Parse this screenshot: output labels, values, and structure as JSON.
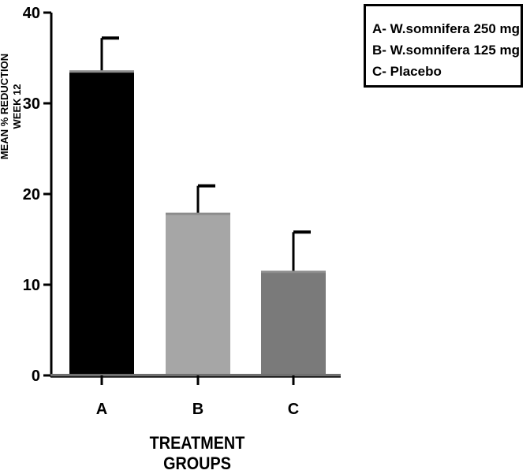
{
  "chart_data": {
    "type": "bar",
    "categories": [
      "A",
      "B",
      "C"
    ],
    "values": [
      33.6,
      17.9,
      11.5
    ],
    "errors": [
      3.6,
      3.0,
      4.3
    ],
    "bar_colors": [
      "#000000",
      "#a6a6a6",
      "#7a7a7a"
    ],
    "ylim": [
      0,
      40
    ],
    "yticks": [
      0,
      10,
      20,
      30,
      40
    ],
    "ylabel_line1": "MEAN % REDUCTION",
    "ylabel_line2": "WEEK 12",
    "xlabel": "TREATMENT GROUPS",
    "legend": [
      "A- W.somnifera 250 mg",
      "B- W.somnifera 125 mg",
      "C- Placebo"
    ],
    "legend_position": "top-right"
  }
}
